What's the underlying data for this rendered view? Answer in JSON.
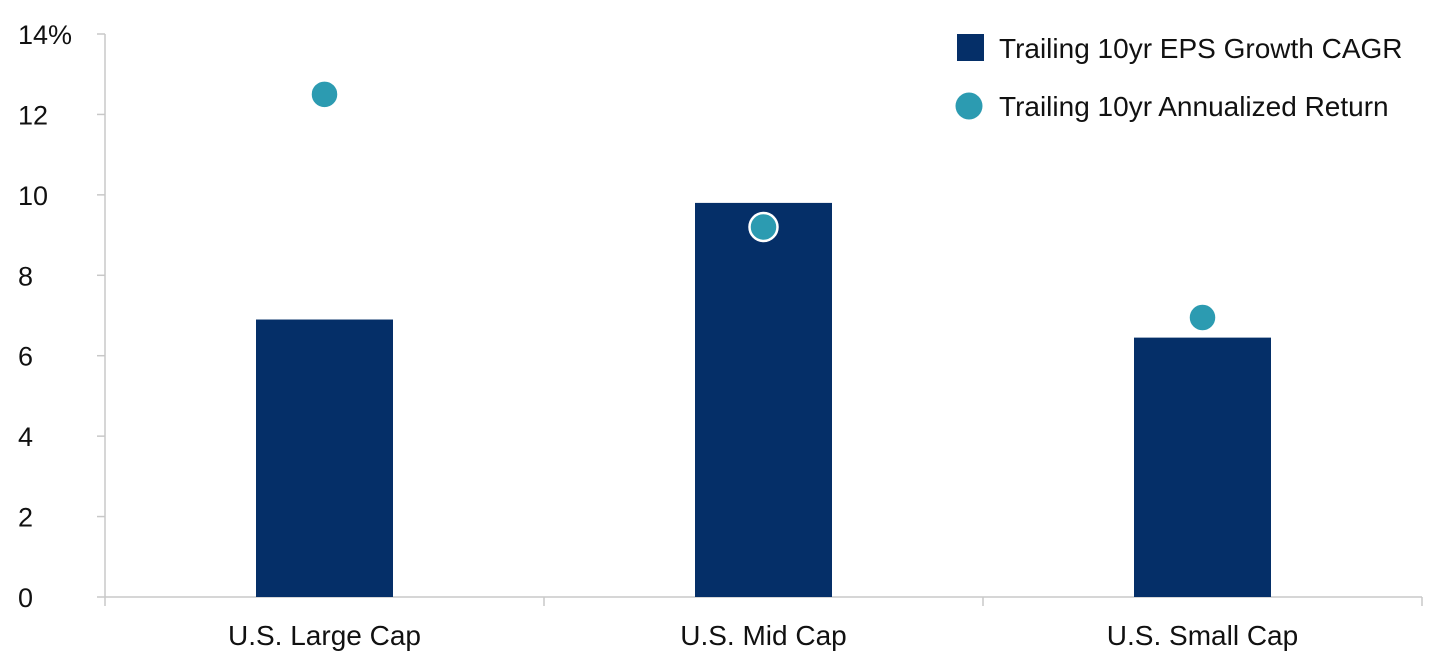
{
  "chart_data": {
    "type": "bar",
    "title": "",
    "xlabel": "",
    "ylabel": "",
    "ylim": [
      0,
      14
    ],
    "yticks": [
      0,
      2,
      4,
      6,
      8,
      10,
      12,
      14
    ],
    "ytick_labels": [
      "0",
      "2",
      "4",
      "6",
      "8",
      "10",
      "12",
      "14%"
    ],
    "categories": [
      "U.S. Large Cap",
      "U.S. Mid Cap",
      "U.S. Small Cap"
    ],
    "series": [
      {
        "name": "Trailing 10yr EPS Growth CAGR",
        "kind": "bar",
        "color": "#052f68",
        "values": [
          6.9,
          9.8,
          6.45
        ]
      },
      {
        "name": "Trailing 10yr Annualized Return",
        "kind": "dot",
        "color": "#2c9bb1",
        "values": [
          12.5,
          9.2,
          6.95
        ]
      }
    ],
    "legend_position": "top-right",
    "grid": false
  }
}
